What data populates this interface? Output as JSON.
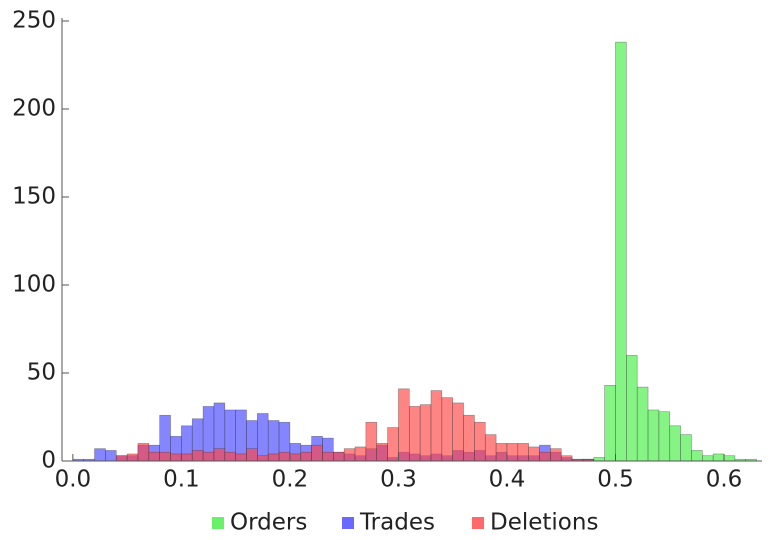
{
  "chart_data": {
    "type": "histogram",
    "bins": [
      0,
      0.01,
      0.02,
      0.03,
      0.04,
      0.05,
      0.06,
      0.07,
      0.08,
      0.09,
      0.1,
      0.11,
      0.12,
      0.13,
      0.14,
      0.15,
      0.16,
      0.17,
      0.18,
      0.19,
      0.2,
      0.21,
      0.22,
      0.23,
      0.24,
      0.25,
      0.26,
      0.27,
      0.28,
      0.29,
      0.3,
      0.31,
      0.32,
      0.33,
      0.34,
      0.35,
      0.36,
      0.37,
      0.38,
      0.39,
      0.4,
      0.41,
      0.42,
      0.43,
      0.44,
      0.45,
      0.46,
      0.47,
      0.48,
      0.49,
      0.5,
      0.51,
      0.52,
      0.53,
      0.54,
      0.55,
      0.56,
      0.57,
      0.58,
      0.59,
      0.6,
      0.61,
      0.62,
      0.63
    ],
    "series": [
      {
        "name": "Orders",
        "color": "#44ee44",
        "values": [
          0,
          0,
          0,
          0,
          0,
          0,
          0,
          0,
          0,
          0,
          0,
          0,
          0,
          0,
          0,
          0,
          0,
          0,
          0,
          0,
          0,
          0,
          0,
          0,
          0,
          0,
          0,
          0,
          0,
          0,
          0,
          0,
          0,
          0,
          0,
          0,
          0,
          0,
          0,
          0,
          0,
          0,
          0,
          0,
          0,
          0,
          0,
          1,
          2,
          43,
          238,
          60,
          42,
          29,
          28,
          20,
          15,
          6,
          3,
          4,
          3,
          1,
          1
        ]
      },
      {
        "name": "Trades",
        "color": "#4444ff",
        "values": [
          1,
          1,
          7,
          6,
          3,
          3,
          9,
          9,
          26,
          14,
          20,
          24,
          31,
          33,
          29,
          29,
          23,
          27,
          23,
          22,
          10,
          9,
          14,
          13,
          5,
          4,
          3,
          7,
          9,
          2,
          5,
          4,
          3,
          4,
          3,
          6,
          5,
          6,
          3,
          5,
          3,
          3,
          3,
          9,
          5,
          2,
          1,
          1,
          0,
          0,
          0,
          0,
          0,
          0,
          0,
          0,
          0,
          0,
          0,
          0,
          0,
          0,
          0
        ]
      },
      {
        "name": "Deletions",
        "color": "#ff4444",
        "values": [
          0,
          0,
          0,
          0,
          3,
          4,
          10,
          5,
          5,
          4,
          4,
          6,
          5,
          7,
          5,
          4,
          7,
          3,
          4,
          5,
          4,
          5,
          9,
          5,
          5,
          7,
          8,
          22,
          10,
          19,
          41,
          31,
          32,
          40,
          36,
          33,
          26,
          22,
          15,
          10,
          10,
          10,
          8,
          5,
          7,
          3,
          1,
          1,
          0,
          0,
          0,
          0,
          0,
          0,
          0,
          0,
          0,
          0,
          0,
          0,
          0,
          0,
          0
        ]
      }
    ],
    "xlim": [
      -0.01,
      0.635
    ],
    "ylim": [
      0,
      250
    ],
    "xticks": [
      {
        "value": 0,
        "label": "0.0"
      },
      0.1,
      0.2,
      0.3,
      0.4,
      0.5,
      0.6
    ],
    "yticks": [
      0,
      50,
      100,
      150,
      200,
      250
    ],
    "legend": "bottom"
  }
}
